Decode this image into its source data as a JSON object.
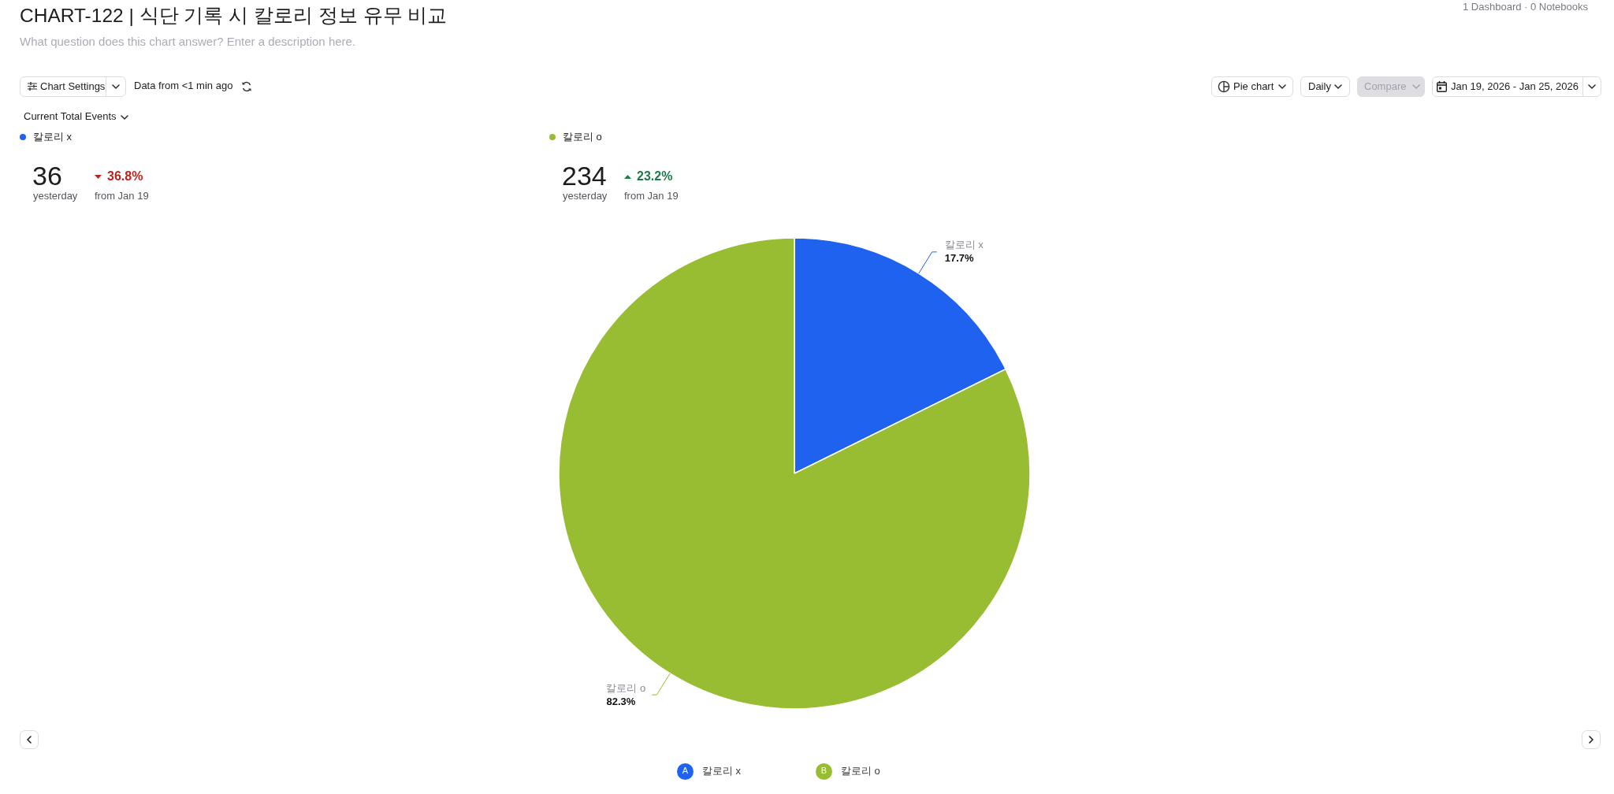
{
  "chart_data": {
    "type": "pie",
    "title": "CHART-122 | 식단 기록 시 칼로리 정보 유무 비교",
    "subtitle": "What question does this chart answer? Enter a description here.",
    "categories": [
      "칼로리 x",
      "칼로리 o"
    ],
    "values": [
      17.7,
      82.3
    ],
    "colors": [
      "#1f62f0",
      "#98bd33"
    ],
    "value_labels": [
      "17.7%",
      "82.3%"
    ],
    "legend": "bottom",
    "annotations": [
      "1 Dashboard · 0 Notebooks",
      "Chart Settings",
      "Data from <1 min ago",
      "Pie chart",
      "Daily",
      "Compare",
      "Jan 19, 2026 - Jan 25, 2026",
      "Current Total Events",
      "36",
      "yesterday",
      "36.8%",
      "from Jan 19",
      "234",
      "yesterday",
      "23.2%",
      "from Jan 19",
      "A",
      "B"
    ]
  }
}
